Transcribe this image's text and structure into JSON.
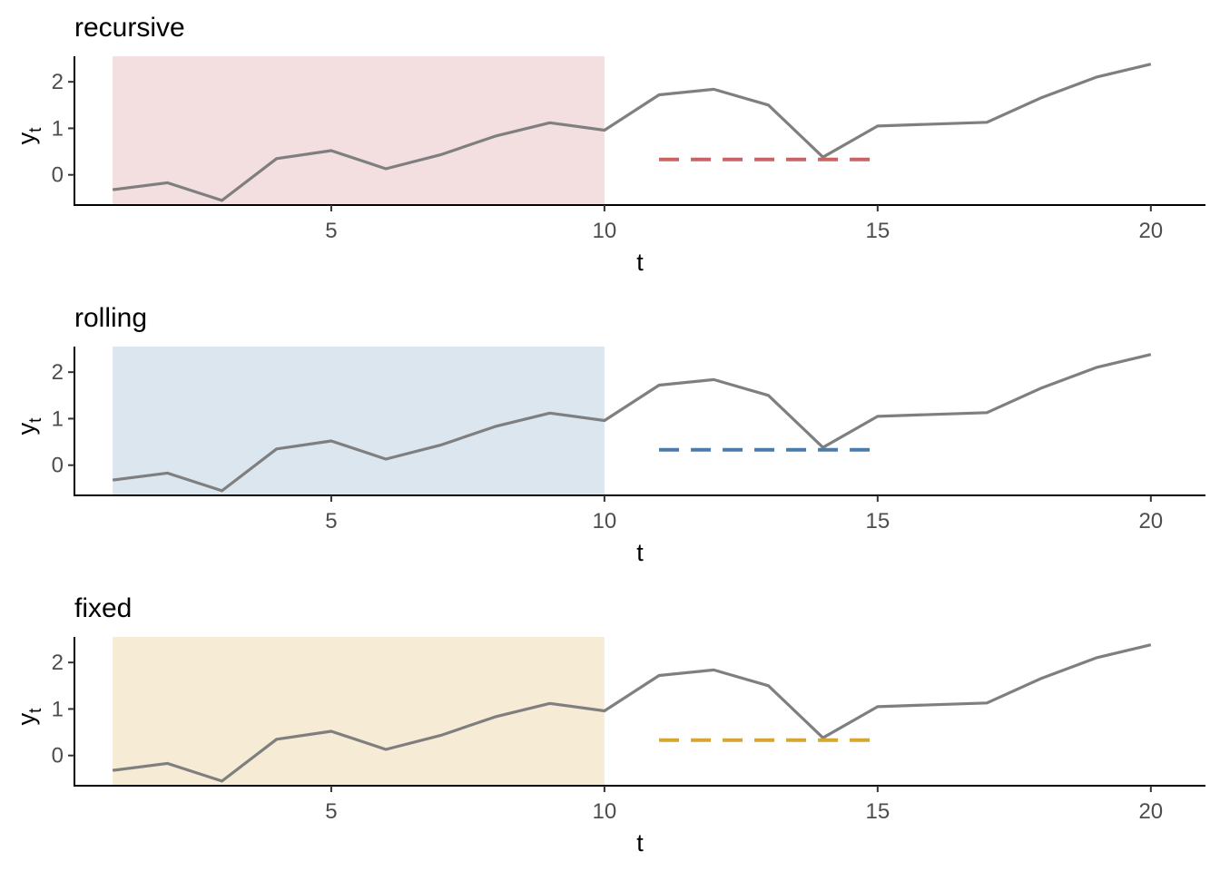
{
  "chart_data": [
    {
      "type": "line",
      "title": "recursive",
      "xlabel": "t",
      "ylabel": "y_t",
      "ylabel_main": "y",
      "ylabel_sub": "t",
      "xlim": [
        0.3,
        21
      ],
      "ylim": [
        -0.65,
        2.55
      ],
      "x_ticks": [
        5,
        10,
        15,
        20
      ],
      "y_ticks": [
        0,
        1,
        2
      ],
      "window_shade": {
        "x_range": [
          1,
          10
        ],
        "color": "#f3dfe0"
      },
      "series": {
        "x": [
          1,
          2,
          3,
          4,
          5,
          6,
          7,
          8,
          9,
          10,
          11,
          12,
          13,
          14,
          15,
          16,
          17,
          18,
          19,
          20
        ],
        "y": [
          -0.32,
          -0.17,
          -0.55,
          0.35,
          0.52,
          0.13,
          0.43,
          0.83,
          1.12,
          0.96,
          1.72,
          1.84,
          1.5,
          0.38,
          1.05,
          1.09,
          1.13,
          1.66,
          2.1,
          2.38
        ],
        "color": "#7f7f7f"
      },
      "forecast": {
        "x": [
          11,
          15
        ],
        "y": 0.33,
        "color": "#c86465"
      }
    },
    {
      "type": "line",
      "title": "rolling",
      "xlabel": "t",
      "ylabel": "y_t",
      "ylabel_main": "y",
      "ylabel_sub": "t",
      "xlim": [
        0.3,
        21
      ],
      "ylim": [
        -0.65,
        2.55
      ],
      "x_ticks": [
        5,
        10,
        15,
        20
      ],
      "y_ticks": [
        0,
        1,
        2
      ],
      "window_shade": {
        "x_range": [
          1,
          10
        ],
        "color": "#dce6ef"
      },
      "series": {
        "x": [
          1,
          2,
          3,
          4,
          5,
          6,
          7,
          8,
          9,
          10,
          11,
          12,
          13,
          14,
          15,
          16,
          17,
          18,
          19,
          20
        ],
        "y": [
          -0.32,
          -0.17,
          -0.55,
          0.35,
          0.52,
          0.13,
          0.43,
          0.83,
          1.12,
          0.96,
          1.72,
          1.84,
          1.5,
          0.38,
          1.05,
          1.09,
          1.13,
          1.66,
          2.1,
          2.38
        ],
        "color": "#7f7f7f"
      },
      "forecast": {
        "x": [
          11,
          15
        ],
        "y": 0.33,
        "color": "#4b7bab"
      }
    },
    {
      "type": "line",
      "title": "fixed",
      "xlabel": "t",
      "ylabel": "y_t",
      "ylabel_main": "y",
      "ylabel_sub": "t",
      "xlim": [
        0.3,
        21
      ],
      "ylim": [
        -0.65,
        2.55
      ],
      "x_ticks": [
        5,
        10,
        15,
        20
      ],
      "y_ticks": [
        0,
        1,
        2
      ],
      "window_shade": {
        "x_range": [
          1,
          10
        ],
        "color": "#f6ebd4"
      },
      "series": {
        "x": [
          1,
          2,
          3,
          4,
          5,
          6,
          7,
          8,
          9,
          10,
          11,
          12,
          13,
          14,
          15,
          16,
          17,
          18,
          19,
          20
        ],
        "y": [
          -0.32,
          -0.17,
          -0.55,
          0.35,
          0.52,
          0.13,
          0.43,
          0.83,
          1.12,
          0.96,
          1.72,
          1.84,
          1.5,
          0.38,
          1.05,
          1.09,
          1.13,
          1.66,
          2.1,
          2.38
        ],
        "color": "#7f7f7f"
      },
      "forecast": {
        "x": [
          11,
          15
        ],
        "y": 0.33,
        "color": "#d5a72e"
      }
    }
  ]
}
